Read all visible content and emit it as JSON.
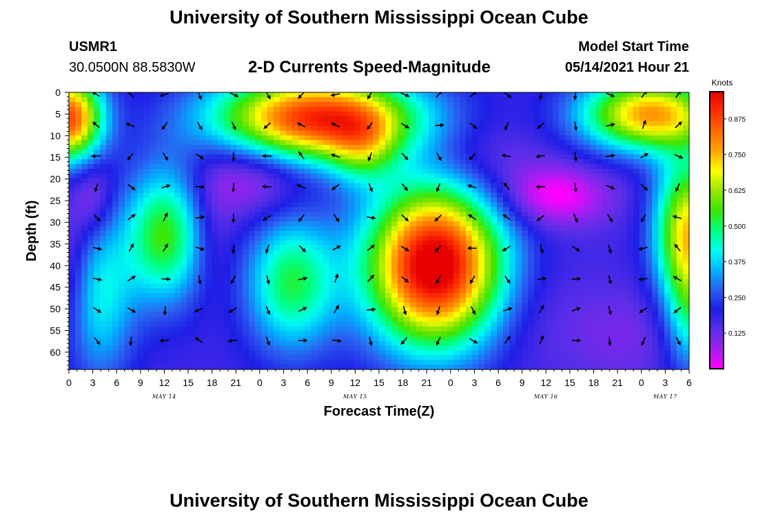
{
  "page": {
    "title": "University of Southern Mississippi Ocean Cube",
    "footer_title": "University of Southern Mississippi Ocean Cube",
    "station": "USMR1",
    "location": "30.0500N  88.5830W",
    "subtitle": "2-D Currents Speed-Magnitude",
    "model_start_label": "Model Start Time",
    "model_start_value": "05/14/2021 Hour 21"
  },
  "chart_data": {
    "type": "heatmap",
    "title": "2-D Currents Speed-Magnitude",
    "xlabel": "Forecast Time(Z)",
    "ylabel": "Depth (ft)",
    "x_tick_labels": [
      "0",
      "3",
      "6",
      "9",
      "12",
      "15",
      "18",
      "21",
      "0",
      "3",
      "6",
      "9",
      "12",
      "15",
      "18",
      "21",
      "0",
      "3",
      "6",
      "9",
      "12",
      "15",
      "18",
      "21",
      "0",
      "3",
      "6"
    ],
    "x_range_hours": [
      0,
      78
    ],
    "date_labels": [
      {
        "text": "MAY 14",
        "hour": 12
      },
      {
        "text": "MAY 15",
        "hour": 36
      },
      {
        "text": "MAY 16",
        "hour": 60
      },
      {
        "text": "MAY 17",
        "hour": 75
      }
    ],
    "y_tick_labels": [
      "0",
      "5",
      "10",
      "15",
      "20",
      "25",
      "30",
      "35",
      "40",
      "45",
      "50",
      "55",
      "60"
    ],
    "y_range": [
      0,
      64
    ],
    "y_inverted": true,
    "colorbar": {
      "unit": "Knots",
      "tick_labels": [
        "0.125",
        "0.250",
        "0.375",
        "0.500",
        "0.625",
        "0.750",
        "0.875"
      ],
      "range": [
        0,
        0.97
      ],
      "colors": [
        "#ff00ff",
        "#a020f0",
        "#5a2ee8",
        "#1e1ee6",
        "#2a60f0",
        "#00b4ff",
        "#00ffee",
        "#00ff7f",
        "#3ce600",
        "#96e600",
        "#ffff00",
        "#ffa500",
        "#ff6a00",
        "#ff3000",
        "#e60000"
      ]
    },
    "speed_field": {
      "description_units": "knots",
      "blobs": [
        {
          "h": 0,
          "d": 6,
          "sh": 3,
          "sd": 7,
          "v": 0.7
        },
        {
          "h": 12,
          "d": 33,
          "sh": 3.5,
          "sd": 11,
          "v": 0.38
        },
        {
          "h": 4,
          "d": 47,
          "sh": 3,
          "sd": 14,
          "v": 0.23
        },
        {
          "h": 3,
          "d": 24,
          "sh": 2,
          "sd": 7,
          "v": -0.12
        },
        {
          "h": 0,
          "d": 40,
          "sh": 2,
          "sd": 10,
          "v": -0.08
        },
        {
          "h": 23,
          "d": 19,
          "sh": 5,
          "sd": 7,
          "v": -0.14
        },
        {
          "h": 18,
          "d": 32,
          "sh": 2,
          "sd": 10,
          "v": -0.06
        },
        {
          "h": 31,
          "d": 6,
          "sh": 9,
          "sd": 7,
          "v": 0.75
        },
        {
          "h": 37,
          "d": 13,
          "sh": 3,
          "sd": 6,
          "v": 0.2
        },
        {
          "h": 28,
          "d": 44,
          "sh": 4,
          "sd": 11,
          "v": 0.34
        },
        {
          "h": 46,
          "d": 40,
          "sh": 6,
          "sd": 13,
          "v": 0.86
        },
        {
          "h": 51,
          "d": 15,
          "sh": 6,
          "sd": 6,
          "v": -0.08
        },
        {
          "h": 61,
          "d": 24,
          "sh": 5,
          "sd": 5,
          "v": -0.18
        },
        {
          "h": 58,
          "d": 52,
          "sh": 5,
          "sd": 10,
          "v": -0.04
        },
        {
          "h": 70,
          "d": 56,
          "sh": 5,
          "sd": 8,
          "v": -0.06
        },
        {
          "h": 73,
          "d": 5,
          "sh": 6,
          "sd": 6,
          "v": 0.6
        },
        {
          "h": 78,
          "d": 32,
          "sh": 3,
          "sd": 12,
          "v": 0.55
        },
        {
          "h": 78,
          "d": 52,
          "sh": 2,
          "sd": 10,
          "v": 0.2
        }
      ],
      "base_value": 0.17
    },
    "vectors": {
      "hour_step": 4.3,
      "depth_step": 7.1,
      "length_px": 11
    }
  }
}
